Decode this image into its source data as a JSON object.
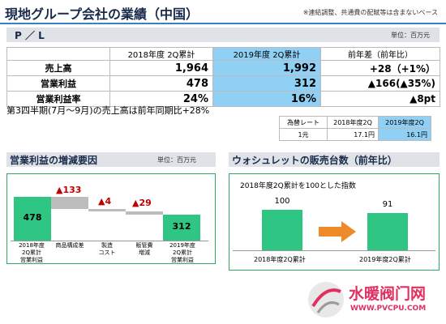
{
  "header": {
    "title": "現地グループ会社の業績（中国）",
    "note": "※連結調整、共通費の配賦等は含まないベース"
  },
  "pl": {
    "label": "P ／ L",
    "unit": "単位：百万元",
    "columns": [
      "",
      "2018年度  2Q累計",
      "2019年度  2Q累計",
      "前年差（前年比）"
    ],
    "rows": [
      {
        "label": "売上高",
        "y2018": "1,964",
        "y2019": "1,992",
        "diff": "+28（+1%）"
      },
      {
        "label": "営業利益",
        "y2018": "478",
        "y2019": "312",
        "diff": "▲166(▲35%)"
      },
      {
        "label": "営業利益率",
        "y2018": "24%",
        "y2019": "16%",
        "diff": "▲8pt"
      }
    ]
  },
  "q3_note": "第3四半期(7月～9月)の売上高は前年同期比+28%",
  "fx": {
    "headers": [
      "為替レート",
      "2018年度2Q",
      "2019年度2Q"
    ],
    "values": [
      "1元",
      "17.1円",
      "16.1円"
    ]
  },
  "left_panel": {
    "title": "営業利益の増減要因",
    "unit": "単位：百万元",
    "start_value": "478",
    "end_value": "312",
    "deltas": [
      "▲133",
      "▲4",
      "▲29"
    ],
    "categories": [
      "2018年度\n2Q累計\n営業利益",
      "商品構成差",
      "製造\nコスト",
      "販管費\n増減",
      "2019年度\n2Q累計\n営業利益"
    ]
  },
  "right_panel": {
    "title": "ウォシュレットの販売台数（前年比）",
    "caption": "2018年度2Q累計を100とした指数",
    "bars": [
      {
        "label": "2018年度2Q累計",
        "value": "100"
      },
      {
        "label": "2019年度2Q累計",
        "value": "91"
      }
    ]
  },
  "watermark": {
    "text": "水暖阀门网",
    "url": "WWW.PVCPU.COM"
  },
  "colors": {
    "bar_green": "#2fc583",
    "highlight_blue": "#8fd0f4",
    "negative_red": "#c00000",
    "arrow_orange": "#ef8a2a"
  }
}
